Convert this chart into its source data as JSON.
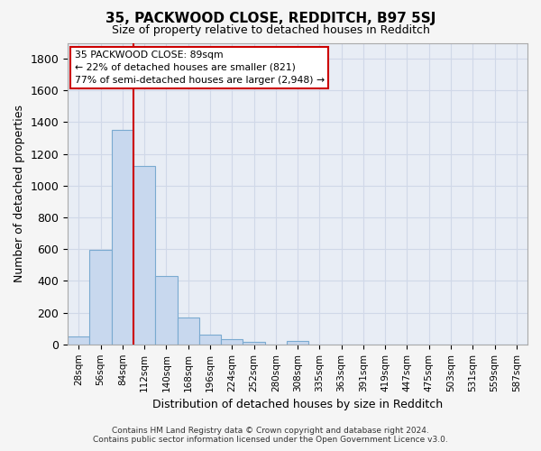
{
  "title": "35, PACKWOOD CLOSE, REDDITCH, B97 5SJ",
  "subtitle": "Size of property relative to detached houses in Redditch",
  "xlabel": "Distribution of detached houses by size in Redditch",
  "ylabel": "Number of detached properties",
  "bar_color": "#c8d8ee",
  "bar_edge_color": "#7aaad0",
  "background_color": "#e8edf5",
  "grid_color": "#d0d8e8",
  "fig_bg_color": "#f5f5f5",
  "categories": [
    "28sqm",
    "56sqm",
    "84sqm",
    "112sqm",
    "140sqm",
    "168sqm",
    "196sqm",
    "224sqm",
    "252sqm",
    "280sqm",
    "308sqm",
    "335sqm",
    "363sqm",
    "391sqm",
    "419sqm",
    "447sqm",
    "475sqm",
    "503sqm",
    "531sqm",
    "559sqm",
    "587sqm"
  ],
  "values": [
    50,
    595,
    1350,
    1125,
    430,
    170,
    60,
    35,
    15,
    0,
    20,
    0,
    0,
    0,
    0,
    0,
    0,
    0,
    0,
    0,
    0
  ],
  "ylim": [
    0,
    1900
  ],
  "yticks": [
    0,
    200,
    400,
    600,
    800,
    1000,
    1200,
    1400,
    1600,
    1800
  ],
  "property_line_color": "#cc0000",
  "annotation_title": "35 PACKWOOD CLOSE: 89sqm",
  "annotation_line1": "← 22% of detached houses are smaller (821)",
  "annotation_line2": "77% of semi-detached houses are larger (2,948) →",
  "annotation_box_color": "#ffffff",
  "annotation_border_color": "#cc0000",
  "footer_line1": "Contains HM Land Registry data © Crown copyright and database right 2024.",
  "footer_line2": "Contains public sector information licensed under the Open Government Licence v3.0."
}
